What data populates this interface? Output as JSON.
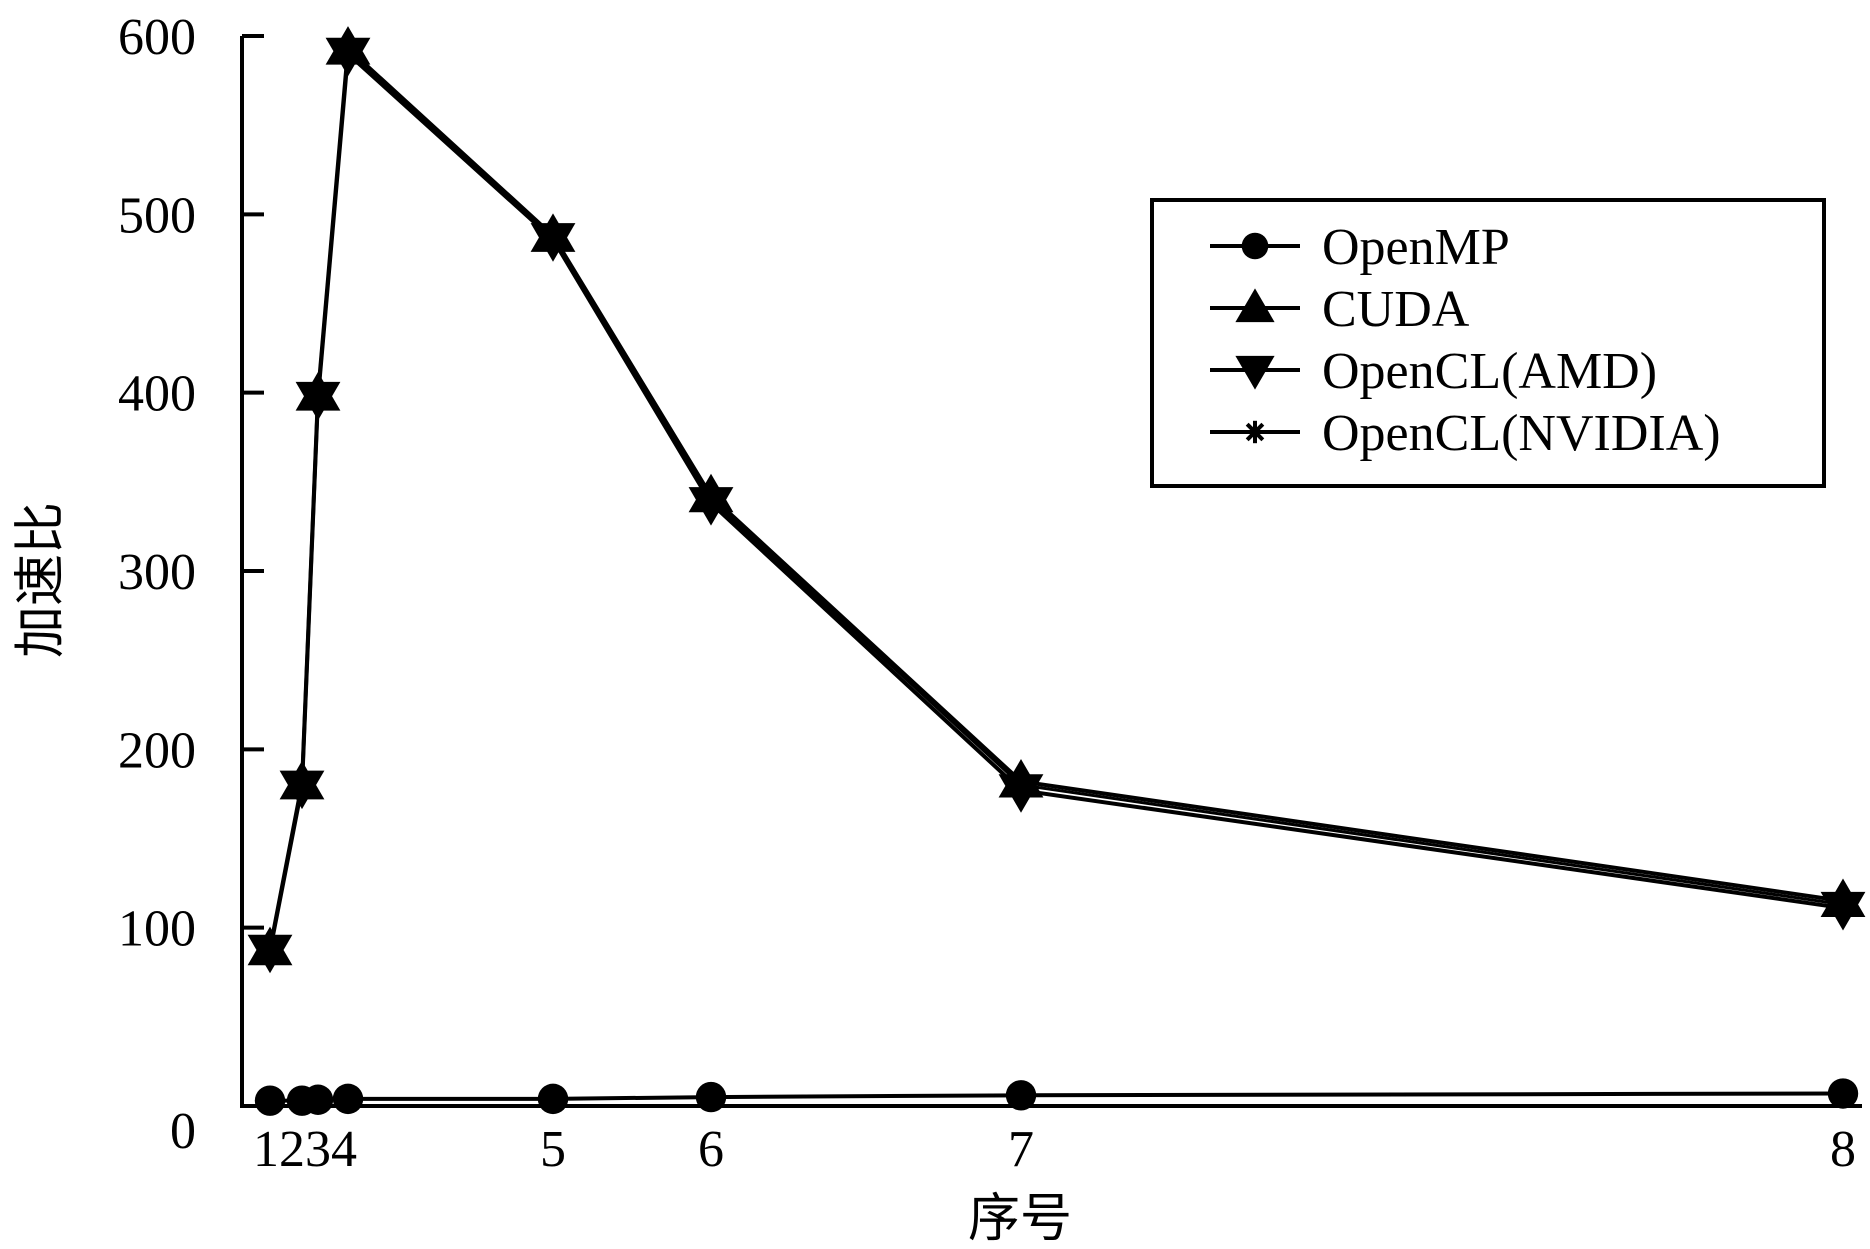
{
  "chart_data": {
    "type": "line",
    "title": "",
    "xlabel": "序号",
    "ylabel": "加速比",
    "x": [
      1,
      2,
      3,
      4,
      5,
      6,
      7,
      8
    ],
    "x_tick_labels": [
      "1",
      "2",
      "3",
      "4",
      "5",
      "6",
      "7",
      "8"
    ],
    "y_ticks": [
      0,
      100,
      200,
      300,
      400,
      500,
      600
    ],
    "ylim": [
      0,
      600
    ],
    "grid": false,
    "legend_position": "top-right",
    "series": [
      {
        "name": "OpenMP",
        "marker": "circle",
        "values": [
          3,
          3,
          3.5,
          4,
          4,
          5,
          6,
          7
        ]
      },
      {
        "name": "CUDA",
        "marker": "triangle-up",
        "values": [
          88,
          181,
          399,
          593,
          488,
          342,
          182,
          115
        ]
      },
      {
        "name": "OpenCL(AMD)",
        "marker": "triangle-down",
        "values": [
          87,
          179,
          397,
          590,
          486,
          338,
          177,
          111
        ]
      },
      {
        "name": "OpenCL(NVIDIA)",
        "marker": "star",
        "values": [
          88,
          180,
          398,
          592,
          487,
          340,
          180,
          113
        ]
      }
    ]
  },
  "colors": {
    "ink": "#000000",
    "background": "#ffffff"
  }
}
